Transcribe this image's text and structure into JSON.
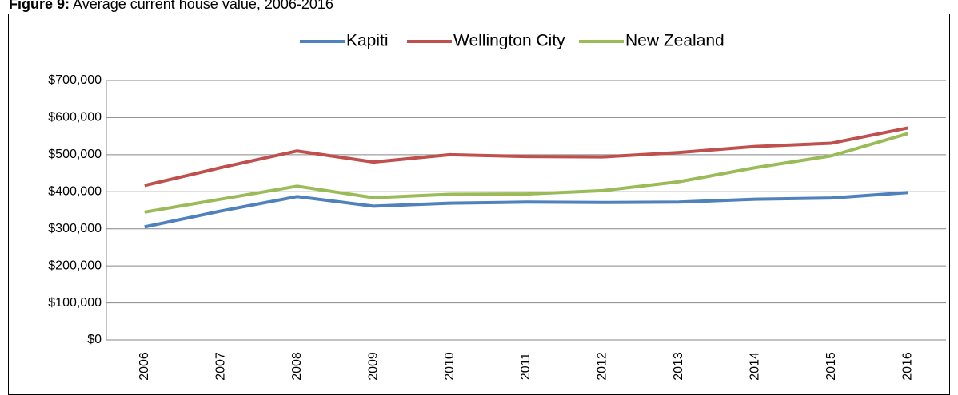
{
  "chart_data": {
    "type": "line",
    "title_prefix": "Figure 9:",
    "title": "Average current house value, 2006-2016",
    "categories": [
      "2006",
      "2007",
      "2008",
      "2009",
      "2010",
      "2011",
      "2012",
      "2013",
      "2014",
      "2015",
      "2016"
    ],
    "series": [
      {
        "name": "Kapiti",
        "color": "#4f81bd",
        "values": [
          305000,
          348000,
          387000,
          361000,
          369000,
          372000,
          371000,
          372000,
          380000,
          383000,
          398000
        ]
      },
      {
        "name": "Wellington City",
        "color": "#c0504d",
        "values": [
          417000,
          465000,
          510000,
          480000,
          500000,
          495000,
          494000,
          506000,
          522000,
          531000,
          572000
        ]
      },
      {
        "name": "New Zealand",
        "color": "#9bbb59",
        "values": [
          345000,
          380000,
          415000,
          384000,
          393000,
          394000,
          403000,
          427000,
          465000,
          497000,
          557000
        ]
      }
    ],
    "ylim": [
      0,
      700000
    ],
    "yticks": [
      {
        "value": 0,
        "label": "$0"
      },
      {
        "value": 100000,
        "label": "$100,000"
      },
      {
        "value": 200000,
        "label": "$200,000"
      },
      {
        "value": 300000,
        "label": "$300,000"
      },
      {
        "value": 400000,
        "label": "$400,000"
      },
      {
        "value": 500000,
        "label": "$500,000"
      },
      {
        "value": 600000,
        "label": "$600,000"
      },
      {
        "value": 700000,
        "label": "$700,000"
      }
    ],
    "grid": true,
    "legend": "top"
  }
}
